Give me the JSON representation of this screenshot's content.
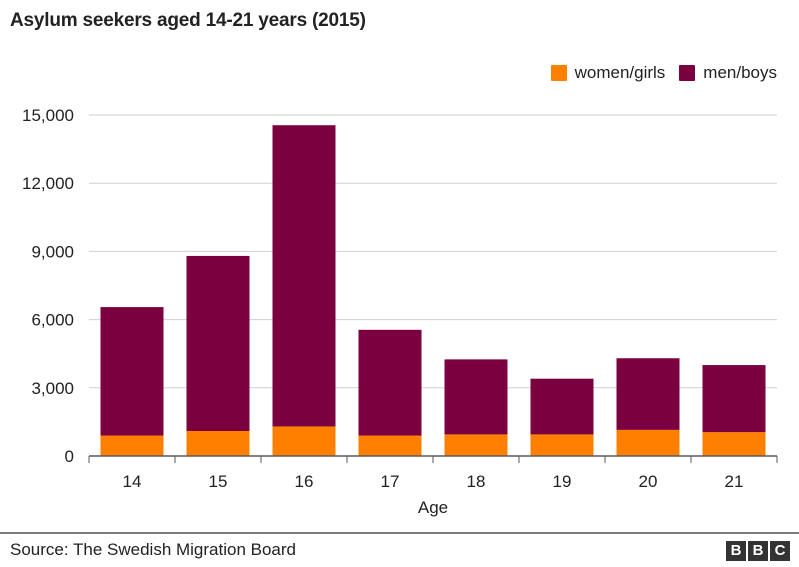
{
  "title": "Asylum seekers aged 14-21 years (2015)",
  "legend": [
    {
      "label": "women/girls",
      "color": "#ff7f00"
    },
    {
      "label": "men/boys",
      "color": "#7a0040"
    }
  ],
  "source": "Source: The Swedish Migration Board",
  "brand": {
    "logo_letters": [
      "B",
      "B",
      "C"
    ]
  },
  "colors": {
    "women_girls": "#ff7f00",
    "men_boys": "#7a0040",
    "grid": "#cfcfcf",
    "axis": "#5a5a5a",
    "text": "#222222"
  },
  "chart_data": {
    "type": "bar",
    "stacked": true,
    "title": "Asylum seekers aged 14-21 years (2015)",
    "xlabel": "Age",
    "ylabel": "",
    "categories": [
      "14",
      "15",
      "16",
      "17",
      "18",
      "19",
      "20",
      "21"
    ],
    "y_ticks": [
      "0",
      "3,000",
      "6,000",
      "9,000",
      "12,000",
      "15,000"
    ],
    "ylim": [
      0,
      15000
    ],
    "grid": true,
    "legend_position": "top-right",
    "series": [
      {
        "name": "women/girls",
        "color": "#ff7f00",
        "values": [
          900,
          1100,
          1300,
          900,
          950,
          950,
          1150,
          1050
        ]
      },
      {
        "name": "men/boys",
        "color": "#7a0040",
        "values": [
          5650,
          7700,
          13250,
          4650,
          3300,
          2450,
          3150,
          2950
        ]
      }
    ],
    "totals": [
      6550,
      8800,
      14550,
      5550,
      4250,
      3400,
      4300,
      4000
    ]
  }
}
